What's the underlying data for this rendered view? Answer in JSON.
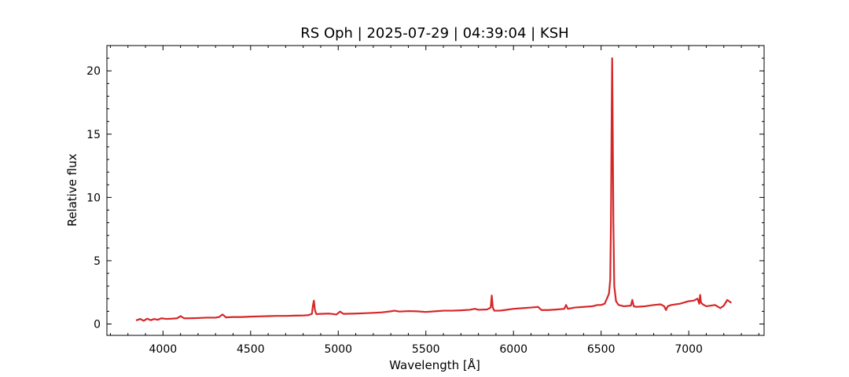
{
  "chart_data": {
    "type": "line",
    "title": "RS Oph | 2025-07-29 | 04:39:04 | KSH",
    "xlabel": "Wavelength [Å]",
    "ylabel": "Relative flux",
    "xlim": [
      3680,
      7430
    ],
    "ylim": [
      -0.9,
      22.0
    ],
    "xticks": [
      4000,
      4500,
      5000,
      5500,
      6000,
      6500,
      7000
    ],
    "yticks": [
      0,
      5,
      10,
      15,
      20
    ],
    "xminor_step": 100,
    "yminor_step": 1,
    "tick_direction": "in",
    "ticks_on_all_sides": true,
    "grid": false,
    "legend": "none",
    "color": "#d62728",
    "series": [
      {
        "x": [
          3850,
          3870,
          3890,
          3910,
          3930,
          3950,
          3970,
          3990,
          4020,
          4050,
          4080,
          4101,
          4120,
          4150,
          4200,
          4250,
          4300,
          4320,
          4340,
          4360,
          4400,
          4450,
          4500,
          4550,
          4600,
          4650,
          4700,
          4750,
          4800,
          4830,
          4850,
          4855,
          4861,
          4867,
          4875,
          4900,
          4950,
          4990,
          5010,
          5030,
          5100,
          5150,
          5200,
          5250,
          5300,
          5320,
          5350,
          5400,
          5450,
          5500,
          5550,
          5600,
          5650,
          5700,
          5750,
          5780,
          5800,
          5850,
          5870,
          5876,
          5882,
          5890,
          5920,
          5950,
          6000,
          6050,
          6100,
          6140,
          6160,
          6200,
          6250,
          6290,
          6300,
          6310,
          6350,
          6400,
          6450,
          6480,
          6500,
          6520,
          6530,
          6545,
          6552,
          6556,
          6560,
          6563,
          6566,
          6570,
          6575,
          6585,
          6600,
          6630,
          6670,
          6678,
          6686,
          6700,
          6750,
          6800,
          6840,
          6860,
          6870,
          6880,
          6900,
          6950,
          7000,
          7030,
          7050,
          7060,
          7065,
          7070,
          7080,
          7100,
          7150,
          7180,
          7200,
          7220,
          7240
        ],
        "y": [
          0.3,
          0.4,
          0.25,
          0.42,
          0.3,
          0.4,
          0.33,
          0.45,
          0.4,
          0.42,
          0.45,
          0.62,
          0.45,
          0.45,
          0.47,
          0.5,
          0.5,
          0.55,
          0.75,
          0.52,
          0.55,
          0.55,
          0.58,
          0.6,
          0.62,
          0.64,
          0.64,
          0.66,
          0.67,
          0.7,
          0.8,
          1.4,
          1.85,
          1.1,
          0.78,
          0.8,
          0.82,
          0.75,
          0.98,
          0.8,
          0.82,
          0.85,
          0.88,
          0.92,
          1.0,
          1.05,
          0.98,
          1.02,
          1.0,
          0.95,
          1.0,
          1.05,
          1.05,
          1.08,
          1.12,
          1.2,
          1.12,
          1.15,
          1.3,
          2.25,
          1.3,
          1.05,
          1.05,
          1.1,
          1.2,
          1.25,
          1.3,
          1.35,
          1.1,
          1.1,
          1.15,
          1.2,
          1.5,
          1.2,
          1.3,
          1.35,
          1.4,
          1.5,
          1.5,
          1.6,
          1.9,
          2.4,
          3.5,
          8.0,
          16.0,
          21.0,
          16.0,
          8.0,
          3.0,
          1.8,
          1.5,
          1.4,
          1.45,
          1.9,
          1.4,
          1.35,
          1.4,
          1.5,
          1.55,
          1.4,
          1.1,
          1.4,
          1.5,
          1.6,
          1.8,
          1.85,
          2.0,
          1.6,
          2.3,
          1.7,
          1.55,
          1.4,
          1.5,
          1.25,
          1.45,
          1.9,
          1.7
        ]
      }
    ]
  }
}
